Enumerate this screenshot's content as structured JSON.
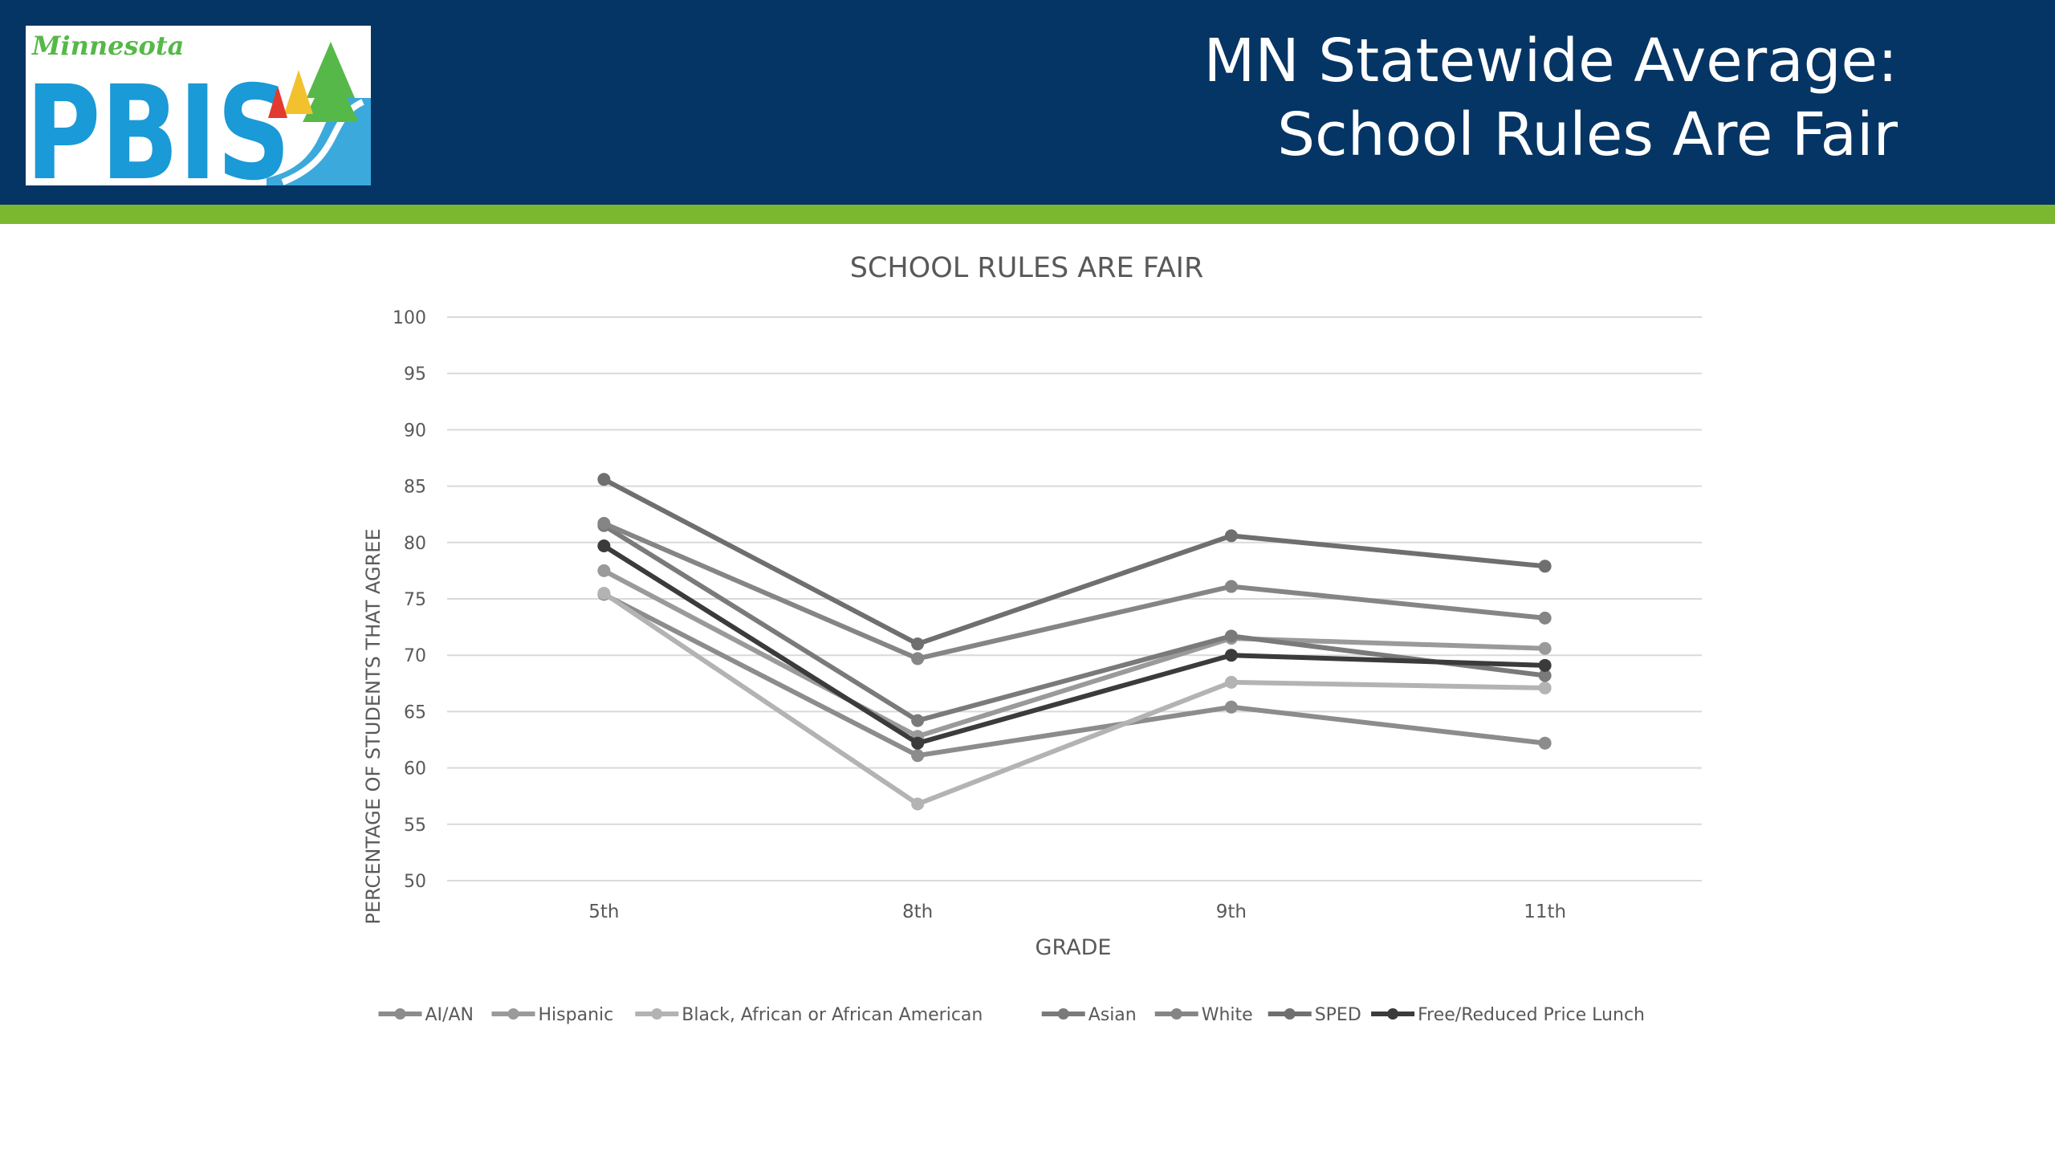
{
  "slide": {
    "logo": {
      "brand_small": "Minnesota",
      "brand_large": "PBIS",
      "colors": {
        "blue": "#1a9ad6",
        "green": "#56b848",
        "yellow": "#f2c12e",
        "red": "#e23a2f"
      }
    },
    "title_line1": "MN Statewide Average:",
    "title_line2": "School Rules Are Fair",
    "colors": {
      "header": "#053564",
      "accent_bar": "#7cb82f",
      "title_text": "#ffffff"
    }
  },
  "chart_data": {
    "type": "line",
    "title": "SCHOOL RULES ARE FAIR",
    "xlabel": "GRADE",
    "ylabel": "PERCENTAGE OF STUDENTS THAT AGREE",
    "categories": [
      "5th",
      "8th",
      "9th",
      "11th"
    ],
    "ylim": [
      50,
      100
    ],
    "yticks": [
      50,
      55,
      60,
      65,
      70,
      75,
      80,
      85,
      90,
      95,
      100
    ],
    "grid": true,
    "legend_position": "bottom",
    "series": [
      {
        "name": "AI/AN",
        "values": [
          75.4,
          61.1,
          65.4,
          62.2
        ],
        "color": "#8c8c8c"
      },
      {
        "name": "Hispanic",
        "values": [
          77.5,
          62.8,
          71.5,
          70.6
        ],
        "color": "#9a9a9a"
      },
      {
        "name": "Black, African or African American",
        "values": [
          75.5,
          56.8,
          67.6,
          67.1
        ],
        "color": "#b3b3b3"
      },
      {
        "name": "Asian",
        "values": [
          81.5,
          64.2,
          71.7,
          68.2
        ],
        "color": "#7a7a7a"
      },
      {
        "name": "White",
        "values": [
          81.7,
          69.7,
          76.1,
          73.3
        ],
        "color": "#858585"
      },
      {
        "name": "SPED",
        "values": [
          85.6,
          71.0,
          80.6,
          77.9
        ],
        "color": "#6f6f6f"
      },
      {
        "name": "Free/Reduced Price Lunch",
        "values": [
          79.7,
          62.2,
          70.0,
          69.1
        ],
        "color": "#3b3b3b"
      }
    ]
  }
}
